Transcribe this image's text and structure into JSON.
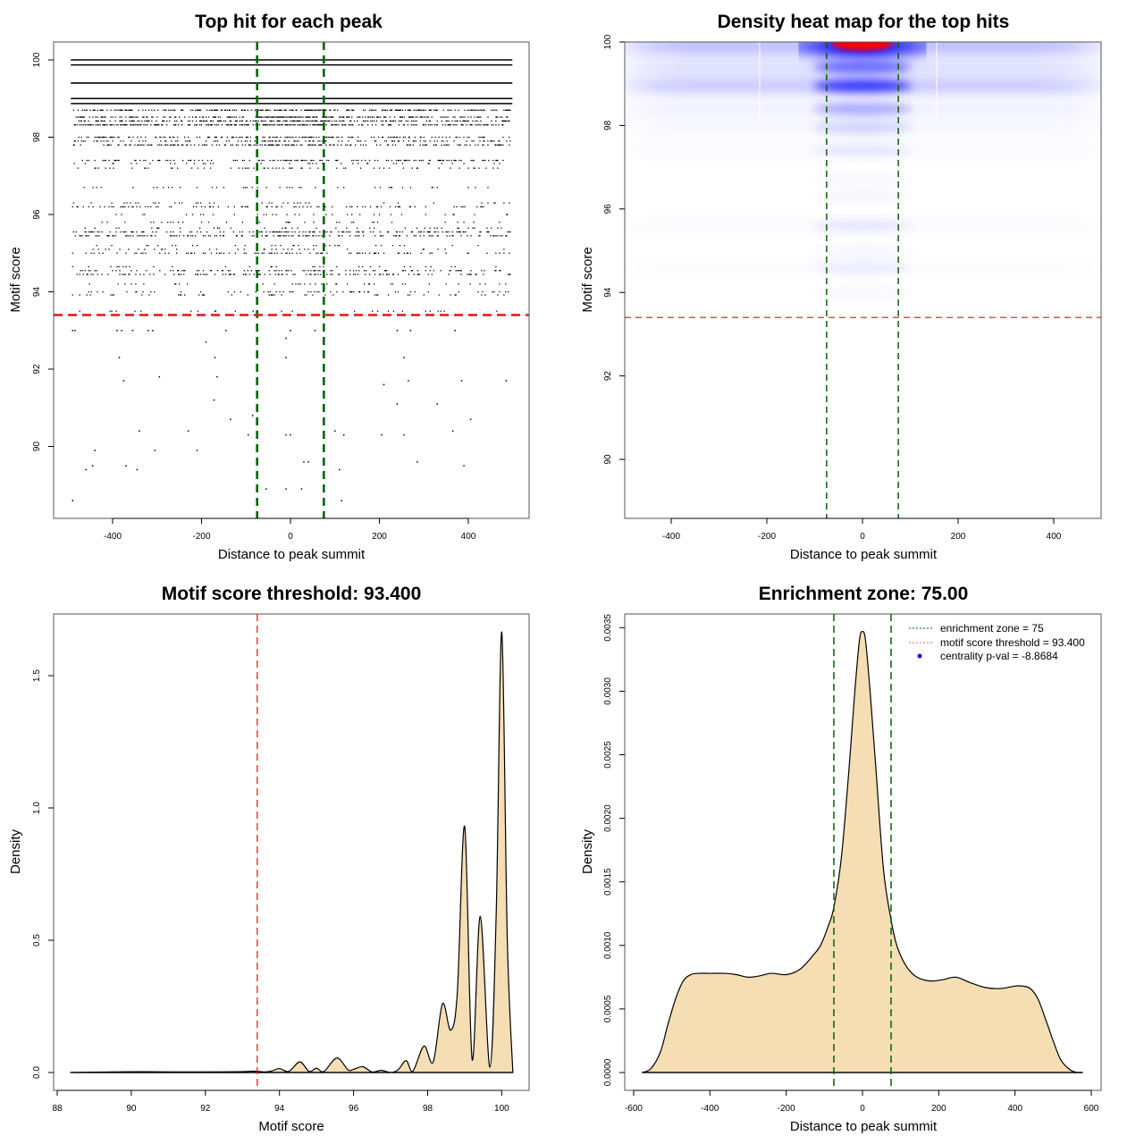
{
  "figure": {
    "colors": {
      "zone_line": "#006400",
      "threshold_line": "#dd2222",
      "threshold_line_soft": "#d9534f",
      "density_fill": "#f5deb3",
      "heat_low": "#ffffff",
      "heat_mid": "#0000ff",
      "heat_high": "#ff0000",
      "legend_point": "#0000ff"
    }
  },
  "chart_data": [
    {
      "id": "scatter",
      "type": "scatter",
      "title": "Top hit for each peak",
      "xlabel": "Distance to peak summit",
      "ylabel": "Motif score",
      "xlim": [
        -530,
        535
      ],
      "ylim": [
        88.2,
        100.5
      ],
      "xticks": [
        -400,
        -200,
        0,
        200,
        400
      ],
      "xtick_labels": [
        "-400",
        "-200",
        "0",
        "200",
        "400"
      ],
      "yticks": [
        90,
        92,
        94,
        96,
        98,
        100
      ],
      "ytick_labels": [
        "90",
        "92",
        "94",
        "96",
        "98",
        "100"
      ],
      "enrichment_zone": [
        -75,
        75
      ],
      "threshold": 93.4,
      "x_range_hits": [
        -490,
        495
      ],
      "score_rows": [
        {
          "score": 100.0,
          "density": 1.0
        },
        {
          "score": 99.87,
          "density": 1.0
        },
        {
          "score": 99.4,
          "density": 1.0
        },
        {
          "score": 99.0,
          "density": 1.0
        },
        {
          "score": 98.87,
          "density": 1.0
        },
        {
          "score": 98.7,
          "density": 0.85
        },
        {
          "score": 98.52,
          "density": 0.8
        },
        {
          "score": 98.42,
          "density": 0.75
        },
        {
          "score": 98.32,
          "density": 0.8
        },
        {
          "score": 98.0,
          "density": 0.55
        },
        {
          "score": 97.9,
          "density": 0.5
        },
        {
          "score": 97.8,
          "density": 0.55
        },
        {
          "score": 97.4,
          "density": 0.45
        },
        {
          "score": 97.32,
          "density": 0.12
        },
        {
          "score": 97.2,
          "density": 0.2
        },
        {
          "score": 96.7,
          "density": 0.15
        },
        {
          "score": 96.3,
          "density": 0.14
        },
        {
          "score": 96.2,
          "density": 0.3
        },
        {
          "score": 96.0,
          "density": 0.12
        },
        {
          "score": 95.8,
          "density": 0.14
        },
        {
          "score": 95.65,
          "density": 0.14
        },
        {
          "score": 95.55,
          "density": 0.5
        },
        {
          "score": 95.45,
          "density": 0.45
        },
        {
          "score": 95.2,
          "density": 0.1
        },
        {
          "score": 95.1,
          "density": 0.12
        },
        {
          "score": 95.0,
          "density": 0.3
        },
        {
          "score": 94.65,
          "density": 0.1
        },
        {
          "score": 94.55,
          "density": 0.35
        },
        {
          "score": 94.45,
          "density": 0.4
        },
        {
          "score": 94.2,
          "density": 0.12
        },
        {
          "score": 94.0,
          "density": 0.2
        },
        {
          "score": 93.92,
          "density": 0.12
        },
        {
          "score": 93.5,
          "density": 0.08
        }
      ],
      "sparse_points": [
        [
          -490,
          93.0
        ],
        [
          -485,
          93.0
        ],
        [
          -390,
          93.0
        ],
        [
          -380,
          93.0
        ],
        [
          -355,
          93.0
        ],
        [
          -320,
          93.0
        ],
        [
          -310,
          93.0
        ],
        [
          -145,
          93.0
        ],
        [
          0,
          93.0
        ],
        [
          55,
          93.0
        ],
        [
          240,
          93.0
        ],
        [
          270,
          93.0
        ],
        [
          370,
          93.0
        ],
        [
          -190,
          92.7
        ],
        [
          -10,
          92.8
        ],
        [
          -385,
          92.3
        ],
        [
          -170,
          92.3
        ],
        [
          -10,
          92.3
        ],
        [
          255,
          92.3
        ],
        [
          -375,
          91.7
        ],
        [
          -295,
          91.8
        ],
        [
          -165,
          91.8
        ],
        [
          210,
          91.6
        ],
        [
          265,
          91.7
        ],
        [
          385,
          91.7
        ],
        [
          485,
          91.7
        ],
        [
          -172,
          91.2
        ],
        [
          240,
          91.1
        ],
        [
          330,
          91.1
        ],
        [
          -85,
          90.8
        ],
        [
          -135,
          90.7
        ],
        [
          405,
          90.7
        ],
        [
          -340,
          90.4
        ],
        [
          -230,
          90.4
        ],
        [
          -95,
          90.3
        ],
        [
          -10,
          90.3
        ],
        [
          0,
          90.3
        ],
        [
          100,
          90.4
        ],
        [
          120,
          90.3
        ],
        [
          205,
          90.3
        ],
        [
          255,
          90.3
        ],
        [
          365,
          90.4
        ],
        [
          -440,
          89.9
        ],
        [
          -305,
          89.9
        ],
        [
          -210,
          89.9
        ],
        [
          -75,
          89.9
        ],
        [
          -460,
          89.4
        ],
        [
          -445,
          89.5
        ],
        [
          -370,
          89.5
        ],
        [
          -345,
          89.4
        ],
        [
          30,
          89.6
        ],
        [
          40,
          89.6
        ],
        [
          110,
          89.4
        ],
        [
          285,
          89.6
        ],
        [
          390,
          89.5
        ],
        [
          -55,
          88.9
        ],
        [
          -10,
          88.9
        ],
        [
          25,
          88.9
        ],
        [
          -490,
          88.6
        ],
        [
          115,
          88.6
        ]
      ]
    },
    {
      "id": "heatmap",
      "type": "heatmap",
      "title": "Density heat map for the top hits",
      "xlabel": "Distance to peak summit",
      "ylabel": "Motif score",
      "xlim": [
        -500,
        500
      ],
      "ylim": [
        88.3,
        100
      ],
      "xticks": [
        -400,
        -200,
        0,
        200,
        400
      ],
      "xtick_labels": [
        "-400",
        "-200",
        "0",
        "200",
        "400"
      ],
      "yticks": [
        90,
        92,
        94,
        96,
        98,
        100
      ],
      "ytick_labels": [
        "90",
        "92",
        "94",
        "96",
        "98",
        "100"
      ],
      "enrichment_zone": [
        -75,
        75
      ],
      "threshold": 93.4,
      "bands": [
        {
          "score": 99.9,
          "background": 0.45,
          "center": 1.0
        },
        {
          "score": 99.4,
          "background": 0.22,
          "center": 0.55
        },
        {
          "score": 98.95,
          "background": 0.35,
          "center": 0.75
        },
        {
          "score": 98.4,
          "background": 0.1,
          "center": 0.3
        },
        {
          "score": 97.95,
          "background": 0.06,
          "center": 0.15
        },
        {
          "score": 97.4,
          "background": 0.04,
          "center": 0.08
        },
        {
          "score": 96.7,
          "background": 0.0,
          "center": 0.03
        },
        {
          "score": 96.3,
          "background": 0.0,
          "center": 0.04
        },
        {
          "score": 95.6,
          "background": 0.03,
          "center": 0.08
        },
        {
          "score": 95.0,
          "background": 0.0,
          "center": 0.04
        },
        {
          "score": 94.6,
          "background": 0.02,
          "center": 0.07
        },
        {
          "score": 94.0,
          "background": 0.0,
          "center": 0.03
        }
      ]
    },
    {
      "id": "score-density",
      "type": "area",
      "title": "Motif score threshold: 93.400",
      "xlabel": "Motif score",
      "ylabel": "Density",
      "xlim": [
        87.6,
        101.0
      ],
      "ylim": [
        -0.07,
        1.75
      ],
      "xticks": [
        88,
        90,
        92,
        94,
        96,
        98,
        100
      ],
      "xtick_labels": [
        "88",
        "90",
        "92",
        "94",
        "96",
        "98",
        "100"
      ],
      "yticks": [
        0.0,
        0.5,
        1.0,
        1.5
      ],
      "ytick_labels": [
        "0.0",
        "0.5",
        "1.0",
        "1.5"
      ],
      "threshold": 93.4,
      "x": [
        88.35,
        89.5,
        90.3,
        91.7,
        92.9,
        93.3,
        93.6,
        93.8,
        94.0,
        94.25,
        94.55,
        94.8,
        95.0,
        95.2,
        95.55,
        95.85,
        96.0,
        96.25,
        96.5,
        96.75,
        97.0,
        97.2,
        97.42,
        97.6,
        97.9,
        98.15,
        98.4,
        98.62,
        98.8,
        99.0,
        99.2,
        99.42,
        99.68,
        99.85,
        100.0,
        100.15,
        100.3
      ],
      "y": [
        0.0,
        0.002,
        0.003,
        0.002,
        0.003,
        0.005,
        0.002,
        0.006,
        0.015,
        0.004,
        0.04,
        0.004,
        0.016,
        0.004,
        0.055,
        0.01,
        0.012,
        0.022,
        0.002,
        0.008,
        0.0,
        0.01,
        0.045,
        0.005,
        0.1,
        0.04,
        0.26,
        0.16,
        0.3,
        0.93,
        0.05,
        0.59,
        0.02,
        0.6,
        1.665,
        0.5,
        0.0
      ]
    },
    {
      "id": "distance-density",
      "type": "area",
      "title": "Enrichment zone: 75.00",
      "xlabel": "Distance to peak summit",
      "ylabel": "Density",
      "xlim": [
        -625,
        615
      ],
      "ylim": [
        -0.00015,
        0.0036
      ],
      "xticks": [
        -600,
        -400,
        -200,
        0,
        200,
        400,
        600
      ],
      "xtick_labels": [
        "-600",
        "-400",
        "-200",
        "0",
        "200",
        "400",
        "600"
      ],
      "yticks": [
        0.0,
        0.0005,
        0.001,
        0.0015,
        0.002,
        0.0025,
        0.003,
        0.0035
      ],
      "ytick_labels": [
        "0.0000",
        "0.0005",
        "0.0010",
        "0.0015",
        "0.0020",
        "0.0025",
        "0.0030",
        "0.0035"
      ],
      "enrichment_zone": [
        -75,
        75
      ],
      "x": [
        -578,
        -555,
        -530,
        -510,
        -490,
        -470,
        -450,
        -430,
        -400,
        -360,
        -330,
        -300,
        -270,
        -240,
        -200,
        -170,
        -150,
        -130,
        -110,
        -90,
        -75,
        -55,
        -35,
        -20,
        -8,
        0,
        8,
        20,
        35,
        55,
        75,
        90,
        110,
        130,
        150,
        180,
        210,
        245,
        280,
        320,
        360,
        400,
        420,
        440,
        460,
        480,
        500,
        520,
        545,
        565,
        578
      ],
      "y": [
        0.0,
        3e-05,
        0.00016,
        0.00038,
        0.00058,
        0.00072,
        0.00077,
        0.00078,
        0.00078,
        0.00078,
        0.00077,
        0.00075,
        0.00076,
        0.00078,
        0.00077,
        0.0008,
        0.00085,
        0.00092,
        0.001,
        0.00115,
        0.0013,
        0.0017,
        0.0024,
        0.003,
        0.0034,
        0.00347,
        0.0034,
        0.003,
        0.0024,
        0.0016,
        0.0012,
        0.001,
        0.00086,
        0.00078,
        0.00074,
        0.00072,
        0.00073,
        0.00075,
        0.00071,
        0.00067,
        0.00066,
        0.00068,
        0.00068,
        0.00066,
        0.00058,
        0.00042,
        0.00025,
        0.0001,
        2e-05,
        0.0,
        0.0
      ],
      "legend": {
        "position": "top-right",
        "entries": [
          {
            "label": "enrichment zone = 75",
            "symbol": "dotted-line",
            "color": "#006400"
          },
          {
            "label": "motif score threshold = 93.400",
            "symbol": "dotted-line",
            "color": "#dd6666"
          },
          {
            "label": "centrality p-val = -8.8684",
            "symbol": "point",
            "color": "#0000ff"
          }
        ]
      }
    }
  ]
}
